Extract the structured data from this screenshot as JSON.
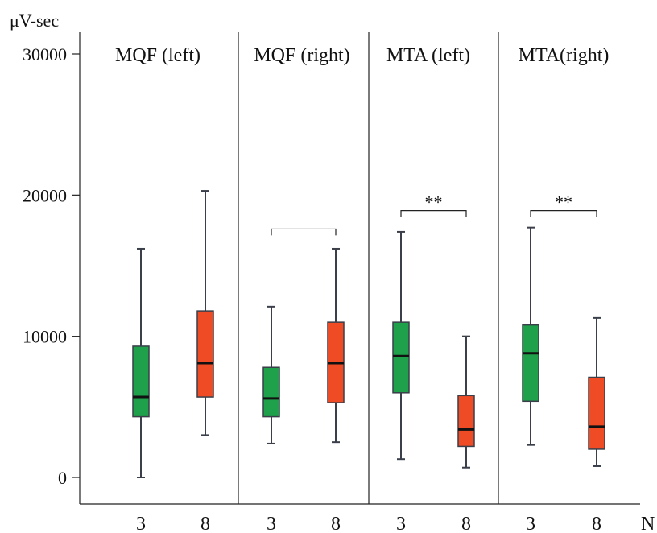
{
  "chart_data": {
    "type": "box",
    "ylabel": "μV-sec",
    "xlabel": "N",
    "ylim": [
      0,
      30000
    ],
    "yticks": [
      0,
      10000,
      20000,
      30000
    ],
    "panels": [
      {
        "title": "MQF (left)",
        "groups": [
          {
            "x": "3",
            "color": "#1fa04a",
            "min": 0,
            "q1": 4300,
            "median": 5700,
            "q3": 9300,
            "max": 16200
          },
          {
            "x": "8",
            "color": "#ef4b24",
            "min": 3000,
            "q1": 5700,
            "median": 8100,
            "q3": 11800,
            "max": 20300
          }
        ],
        "bracket": null
      },
      {
        "title": "MQF (right)",
        "groups": [
          {
            "x": "3",
            "color": "#1fa04a",
            "min": 2400,
            "q1": 4300,
            "median": 5600,
            "q3": 7800,
            "max": 12100
          },
          {
            "x": "8",
            "color": "#ef4b24",
            "min": 2500,
            "q1": 5300,
            "median": 8100,
            "q3": 11000,
            "max": 16200
          }
        ],
        "bracket": {
          "y": 17600,
          "label": ""
        }
      },
      {
        "title": "MTA (left)",
        "groups": [
          {
            "x": "3",
            "color": "#1fa04a",
            "min": 1300,
            "q1": 6000,
            "median": 8600,
            "q3": 11000,
            "max": 17400
          },
          {
            "x": "8",
            "color": "#ef4b24",
            "min": 700,
            "q1": 2200,
            "median": 3400,
            "q3": 5800,
            "max": 10000
          }
        ],
        "bracket": {
          "y": 18900,
          "label": "**"
        }
      },
      {
        "title": "MTA(right)",
        "groups": [
          {
            "x": "3",
            "color": "#1fa04a",
            "min": 2300,
            "q1": 5400,
            "median": 8800,
            "q3": 10800,
            "max": 17700
          },
          {
            "x": "8",
            "color": "#ef4b24",
            "min": 800,
            "q1": 2000,
            "median": 3600,
            "q3": 7100,
            "max": 11300
          }
        ],
        "bracket": {
          "y": 18900,
          "label": "**"
        }
      }
    ]
  }
}
